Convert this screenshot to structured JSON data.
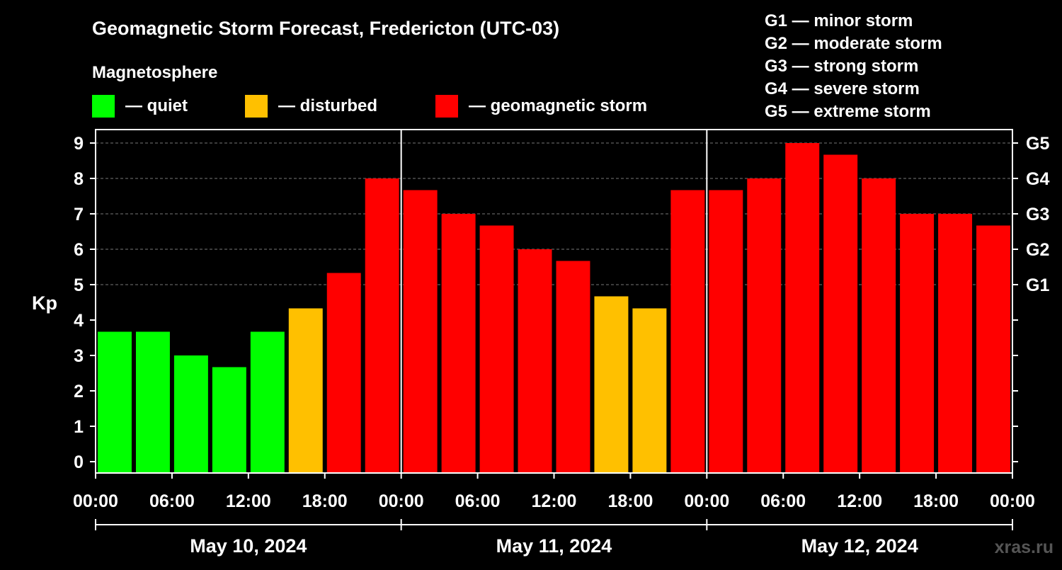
{
  "chart_data": {
    "type": "bar",
    "title": "Geomagnetic Storm Forecast, Fredericton (UTC-03)",
    "legend": {
      "title": "Magnetosphere",
      "items": [
        {
          "label": "— quiet",
          "color": "#00ff00"
        },
        {
          "label": "— disturbed",
          "color": "#ffc000"
        },
        {
          "label": "— geomagnetic storm",
          "color": "#ff0000"
        }
      ]
    },
    "storm_scale": [
      "G1 — minor storm",
      "G2 — moderate storm",
      "G3 — strong storm",
      "G4 — severe storm",
      "G5 — extreme storm"
    ],
    "ylabel": "Kp",
    "ylim": [
      0,
      9
    ],
    "yticks": [
      "0",
      "1",
      "2",
      "3",
      "4",
      "5",
      "6",
      "7",
      "8",
      "9"
    ],
    "right_axis": {
      "labels": [
        {
          "value": 5,
          "label": "G1"
        },
        {
          "value": 6,
          "label": "G2"
        },
        {
          "value": 7,
          "label": "G3"
        },
        {
          "value": 8,
          "label": "G4"
        },
        {
          "value": 9,
          "label": "G5"
        }
      ]
    },
    "grid": "dashed horizontal at 5,6,7,8,9",
    "x_tick_labels": [
      "00:00",
      "06:00",
      "12:00",
      "18:00",
      "00:00",
      "06:00",
      "12:00",
      "18:00",
      "00:00",
      "06:00",
      "12:00",
      "18:00",
      "00:00"
    ],
    "days": [
      "May 10, 2024",
      "May 11, 2024",
      "May 12, 2024"
    ],
    "periods": [
      "May 10 00:00-03:00",
      "May 10 03:00-06:00",
      "May 10 06:00-09:00",
      "May 10 09:00-12:00",
      "May 10 12:00-15:00",
      "May 10 15:00-18:00",
      "May 10 18:00-21:00",
      "May 10 21:00-24:00",
      "May 11 00:00-03:00",
      "May 11 03:00-06:00",
      "May 11 06:00-09:00",
      "May 11 09:00-12:00",
      "May 11 12:00-15:00",
      "May 11 15:00-18:00",
      "May 11 18:00-21:00",
      "May 11 21:00-24:00",
      "May 12 00:00-03:00",
      "May 12 03:00-06:00",
      "May 12 06:00-09:00",
      "May 12 09:00-12:00",
      "May 12 12:00-15:00",
      "May 12 15:00-18:00",
      "May 12 18:00-21:00",
      "May 12 21:00-24:00"
    ],
    "values": [
      3.67,
      3.67,
      3.0,
      2.67,
      3.67,
      4.33,
      5.33,
      8.0,
      7.67,
      7.0,
      6.67,
      6.0,
      5.67,
      4.67,
      4.33,
      7.67,
      7.67,
      8.0,
      9.0,
      8.67,
      8.0,
      7.0,
      7.0,
      6.67
    ],
    "status": [
      "quiet",
      "quiet",
      "quiet",
      "quiet",
      "quiet",
      "disturbed",
      "storm",
      "storm",
      "storm",
      "storm",
      "storm",
      "storm",
      "storm",
      "disturbed",
      "disturbed",
      "storm",
      "storm",
      "storm",
      "storm",
      "storm",
      "storm",
      "storm",
      "storm",
      "storm"
    ],
    "status_colors": {
      "quiet": "#00ff00",
      "disturbed": "#ffc000",
      "storm": "#ff0000"
    }
  },
  "watermark": "xras.ru"
}
